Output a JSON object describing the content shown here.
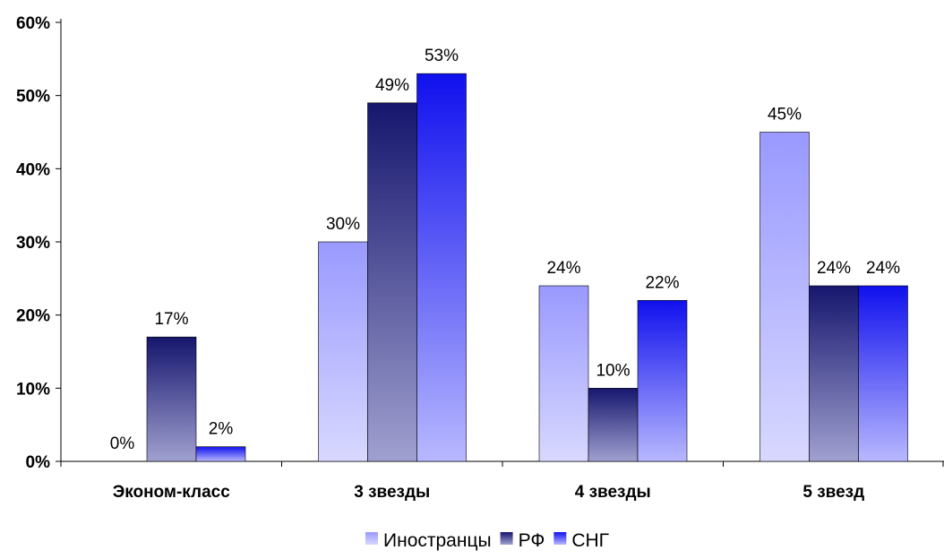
{
  "chart_data": {
    "type": "bar",
    "categories": [
      "Эконом-класс",
      "3 звезды",
      "4 звезды",
      "5 звезд"
    ],
    "series": [
      {
        "name": "Иностранцы",
        "values": [
          0,
          30,
          24,
          45
        ],
        "labels": [
          "0%",
          "30%",
          "24%",
          "45%"
        ],
        "color_top": "#9999ff",
        "color_bottom": "#d8d8ff"
      },
      {
        "name": "РФ",
        "values": [
          17,
          49,
          10,
          24
        ],
        "labels": [
          "17%",
          "49%",
          "10%",
          "24%"
        ],
        "color_top": "#16166e",
        "color_bottom": "#a0a0d0"
      },
      {
        "name": "СНГ",
        "values": [
          2,
          53,
          22,
          24
        ],
        "labels": [
          "2%",
          "53%",
          "22%",
          "24%"
        ],
        "color_top": "#1010ee",
        "color_bottom": "#b8b8ff"
      }
    ],
    "ylim": [
      0,
      60
    ],
    "yticks": [
      0,
      10,
      20,
      30,
      40,
      50,
      60
    ],
    "ytick_labels": [
      "0%",
      "10%",
      "20%",
      "30%",
      "40%",
      "50%",
      "60%"
    ],
    "title": "",
    "xlabel": "",
    "ylabel": "",
    "grid": false,
    "legend_position": "bottom"
  }
}
